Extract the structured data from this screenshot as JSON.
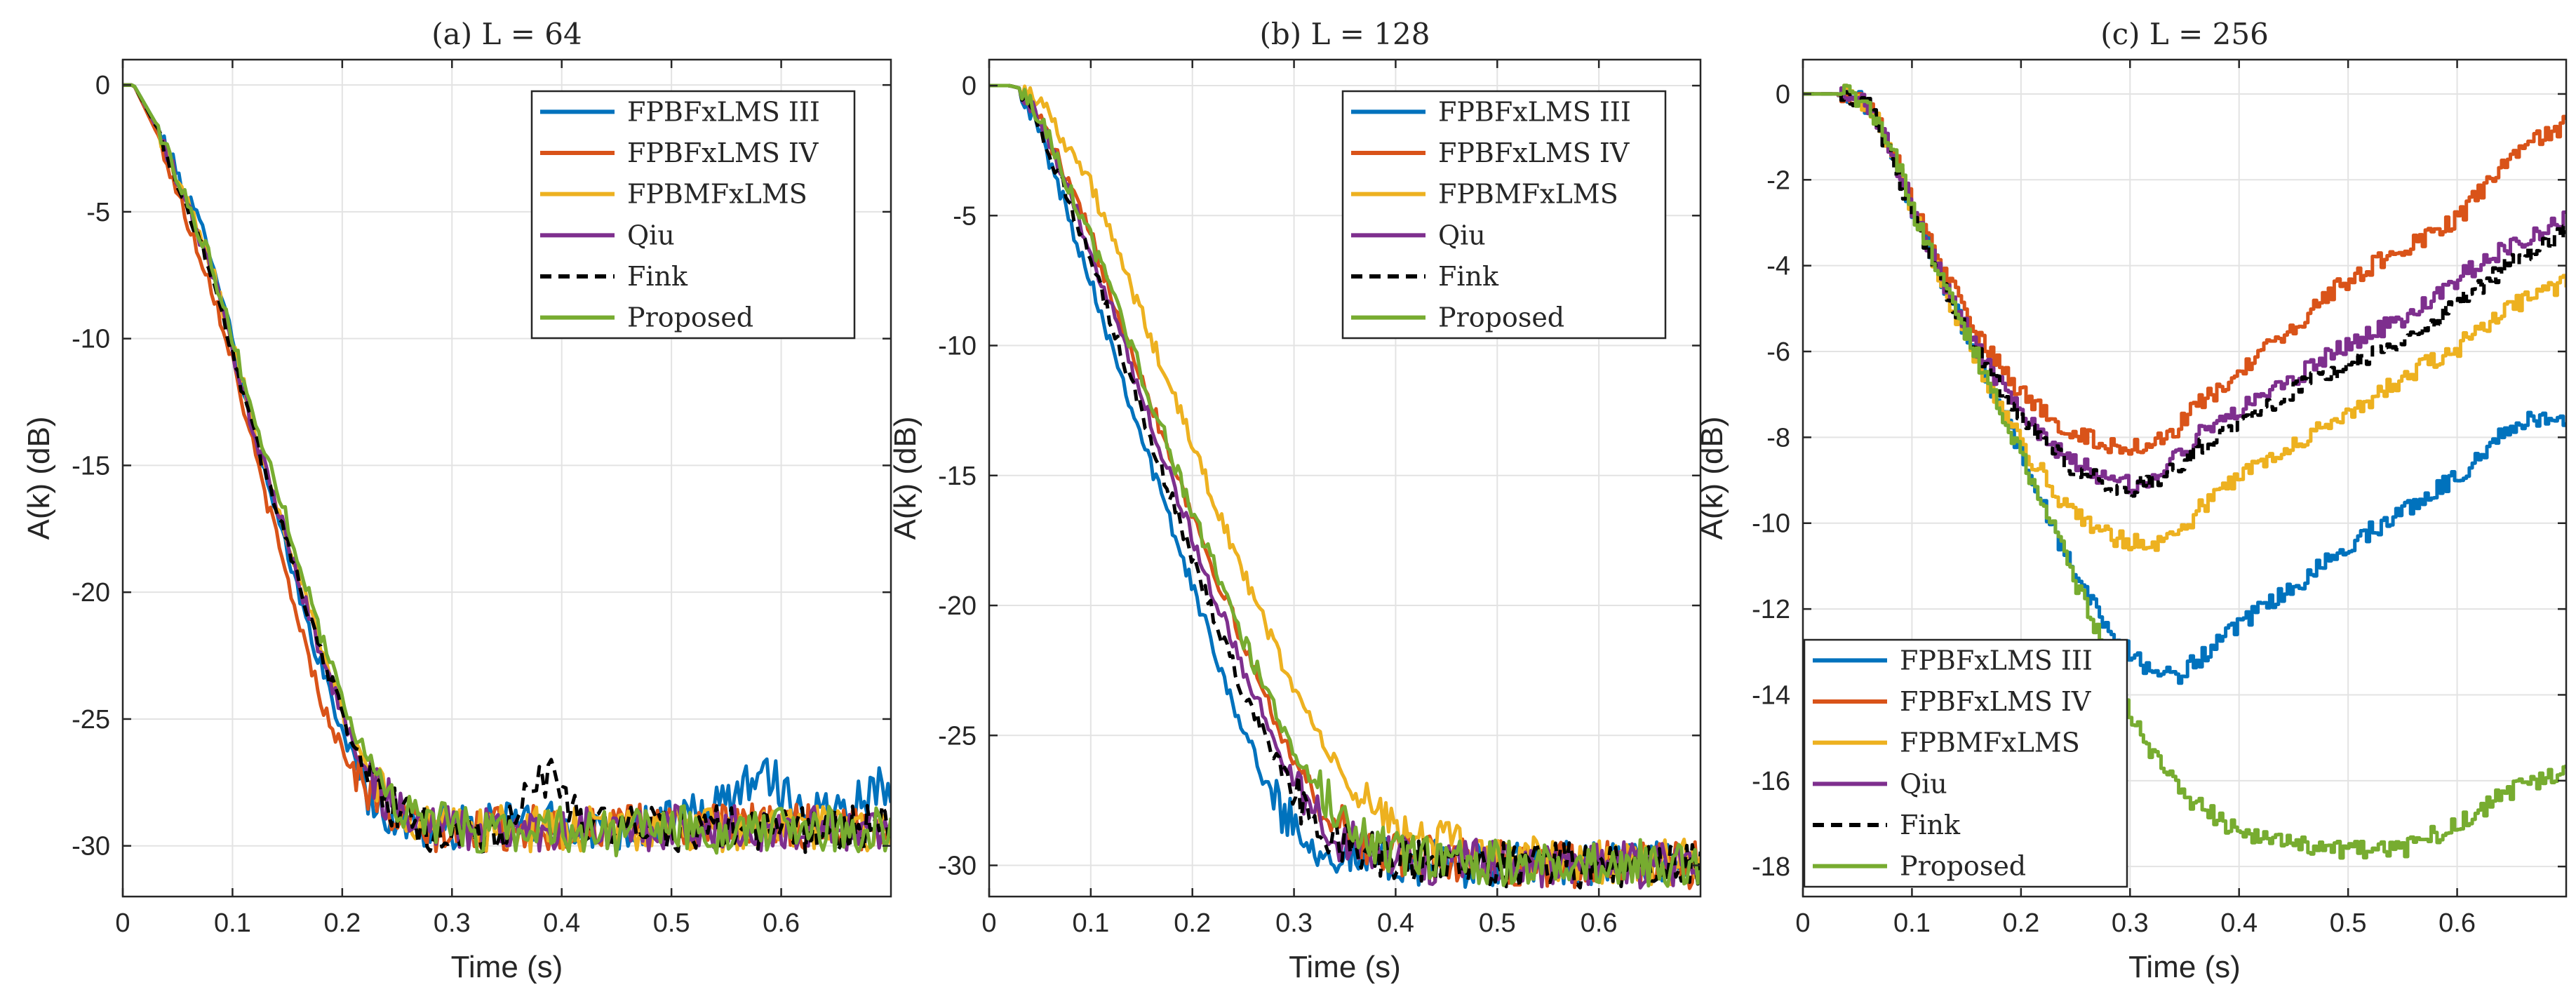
{
  "colors": {
    "FPBFxLMS III": "#0072BD",
    "FPBFxLMS IV": "#D95319",
    "FPBMFxLMS": "#EDB120",
    "Qiu": "#7E2F8E",
    "Fink": "#000000",
    "Proposed": "#77AC30"
  },
  "chart_data": [
    {
      "type": "line",
      "title": "(a) L = 64",
      "xlabel": "Time (s)",
      "ylabel": "A(k) (dB)",
      "xlim": [
        0,
        0.7
      ],
      "ylim": [
        -32,
        1
      ],
      "xticks": [
        0,
        0.1,
        0.2,
        0.3,
        0.4,
        0.5,
        0.6
      ],
      "xtick_labels": [
        "0",
        "0.1",
        "0.2",
        "0.3",
        "0.4",
        "0.5",
        "0.6"
      ],
      "yticks": [
        0,
        -5,
        -10,
        -15,
        -20,
        -25,
        -30
      ],
      "ytick_labels": [
        "0",
        "-5",
        "-10",
        "-15",
        "-20",
        "-25",
        "-30"
      ],
      "grid": true,
      "legend_position": "top-right",
      "series": [
        {
          "name": "FPBFxLMS III",
          "x": [
            0,
            0.01,
            0.03,
            0.06,
            0.08,
            0.1,
            0.12,
            0.14,
            0.17,
            0.2,
            0.23,
            0.26,
            0.28,
            0.32,
            0.36,
            0.4,
            0.45,
            0.5,
            0.55,
            0.58,
            0.62,
            0.65,
            0.7
          ],
          "y": [
            0,
            0,
            -1.5,
            -4.5,
            -6.5,
            -10,
            -14,
            -17,
            -21.5,
            -25.5,
            -28.5,
            -29.2,
            -29.3,
            -29.3,
            -29,
            -29.2,
            -29.3,
            -29.1,
            -28.4,
            -26.8,
            -28.6,
            -28.5,
            -27.5
          ]
        },
        {
          "name": "FPBFxLMS IV",
          "x": [
            0,
            0.01,
            0.03,
            0.06,
            0.08,
            0.1,
            0.12,
            0.15,
            0.18,
            0.2,
            0.22,
            0.25,
            0.28,
            0.32,
            0.36,
            0.4,
            0.45,
            0.5,
            0.55,
            0.6,
            0.65,
            0.7
          ],
          "y": [
            0,
            0,
            -1.8,
            -5.5,
            -7.8,
            -10.8,
            -14.5,
            -19.5,
            -24.2,
            -26.2,
            -27.6,
            -29,
            -29.4,
            -29.5,
            -29.2,
            -29.4,
            -29.3,
            -29.2,
            -29.3,
            -29.2,
            -29.3,
            -29.3
          ]
        },
        {
          "name": "FPBMFxLMS",
          "x": [
            0,
            0.01,
            0.03,
            0.06,
            0.08,
            0.1,
            0.12,
            0.15,
            0.18,
            0.21,
            0.24,
            0.27,
            0.3,
            0.35,
            0.4,
            0.45,
            0.5,
            0.55,
            0.6,
            0.65,
            0.7
          ],
          "y": [
            0,
            0,
            -1.6,
            -4.8,
            -7,
            -10.2,
            -13.5,
            -17.8,
            -22.2,
            -25.8,
            -28,
            -29,
            -29.3,
            -29.3,
            -29.4,
            -29.3,
            -29.3,
            -29.4,
            -29.3,
            -29.3,
            -29.3
          ]
        },
        {
          "name": "Qiu",
          "x": [
            0,
            0.01,
            0.03,
            0.06,
            0.08,
            0.1,
            0.12,
            0.15,
            0.18,
            0.21,
            0.24,
            0.27,
            0.3,
            0.35,
            0.4,
            0.45,
            0.5,
            0.55,
            0.6,
            0.65,
            0.7
          ],
          "y": [
            0,
            0,
            -1.6,
            -4.9,
            -7.2,
            -10.4,
            -13.8,
            -18,
            -22.4,
            -26,
            -28.2,
            -29,
            -29.3,
            -29.4,
            -29.3,
            -29.5,
            -29.3,
            -29.3,
            -29.4,
            -29.3,
            -29.3
          ]
        },
        {
          "name": "Fink",
          "x": [
            0,
            0.01,
            0.03,
            0.06,
            0.08,
            0.1,
            0.12,
            0.15,
            0.18,
            0.21,
            0.24,
            0.27,
            0.3,
            0.35,
            0.39,
            0.42,
            0.45,
            0.5,
            0.55,
            0.6,
            0.65,
            0.7
          ],
          "y": [
            0,
            0,
            -1.6,
            -5,
            -7.3,
            -10.5,
            -13.9,
            -18,
            -22.3,
            -26,
            -28.3,
            -29.2,
            -29.6,
            -29.4,
            -27,
            -29.2,
            -29.3,
            -29.4,
            -29.3,
            -29.4,
            -29.3,
            -29.3
          ]
        },
        {
          "name": "Proposed",
          "x": [
            0,
            0.01,
            0.03,
            0.06,
            0.08,
            0.1,
            0.12,
            0.15,
            0.18,
            0.21,
            0.24,
            0.27,
            0.3,
            0.35,
            0.4,
            0.45,
            0.5,
            0.55,
            0.6,
            0.65,
            0.7
          ],
          "y": [
            0,
            0,
            -1.5,
            -4.7,
            -6.9,
            -10,
            -13.2,
            -17.2,
            -21.6,
            -25.4,
            -27.8,
            -28.9,
            -29.3,
            -29.4,
            -29.3,
            -29.5,
            -29.3,
            -29.4,
            -29.4,
            -29.3,
            -29.4
          ]
        }
      ]
    },
    {
      "type": "line",
      "title": "(b) L = 128",
      "xlabel": "Time (s)",
      "ylabel": "A(k) (dB)",
      "xlim": [
        0,
        0.7
      ],
      "ylim": [
        -31.2,
        1
      ],
      "xticks": [
        0,
        0.1,
        0.2,
        0.3,
        0.4,
        0.5,
        0.6
      ],
      "xtick_labels": [
        "0",
        "0.1",
        "0.2",
        "0.3",
        "0.4",
        "0.5",
        "0.6"
      ],
      "yticks": [
        0,
        -5,
        -10,
        -15,
        -20,
        -25,
        -30
      ],
      "ytick_labels": [
        "0",
        "-5",
        "-10",
        "-15",
        "-20",
        "-25",
        "-30"
      ],
      "grid": true,
      "legend_position": "top-right",
      "series": [
        {
          "name": "FPBFxLMS III",
          "x": [
            0,
            0.02,
            0.03,
            0.05,
            0.1,
            0.15,
            0.2,
            0.25,
            0.28,
            0.32,
            0.36,
            0.4,
            0.45,
            0.5,
            0.55,
            0.6,
            0.65,
            0.7
          ],
          "y": [
            0,
            0,
            -0.1,
            -1.8,
            -7.5,
            -13.5,
            -19.3,
            -24.8,
            -27.5,
            -29.2,
            -29.7,
            -29.9,
            -29.9,
            -30,
            -30,
            -29.9,
            -30,
            -30
          ]
        },
        {
          "name": "FPBFxLMS IV",
          "x": [
            0,
            0.02,
            0.03,
            0.05,
            0.1,
            0.15,
            0.2,
            0.25,
            0.3,
            0.34,
            0.38,
            0.42,
            0.46,
            0.5,
            0.55,
            0.6,
            0.65,
            0.7
          ],
          "y": [
            0,
            0,
            -0.1,
            -1.2,
            -5.8,
            -11.2,
            -16.5,
            -21.5,
            -26,
            -28.4,
            -29.4,
            -29.7,
            -29.8,
            -29.9,
            -30,
            -29.9,
            -30,
            -30
          ]
        },
        {
          "name": "FPBMFxLMS",
          "x": [
            0,
            0.02,
            0.03,
            0.05,
            0.1,
            0.15,
            0.2,
            0.25,
            0.3,
            0.35,
            0.4,
            0.45,
            0.5,
            0.55,
            0.6,
            0.65,
            0.7
          ],
          "y": [
            0,
            0,
            -0.1,
            -0.5,
            -3.8,
            -8.8,
            -13.8,
            -18.8,
            -23.2,
            -26.8,
            -28.6,
            -29.2,
            -29.6,
            -29.8,
            -29.8,
            -29.9,
            -29.9
          ]
        },
        {
          "name": "Qiu",
          "x": [
            0,
            0.02,
            0.03,
            0.05,
            0.1,
            0.15,
            0.2,
            0.25,
            0.3,
            0.34,
            0.38,
            0.42,
            0.46,
            0.5,
            0.55,
            0.6,
            0.65,
            0.7
          ],
          "y": [
            0,
            0,
            -0.1,
            -1.4,
            -6.3,
            -11.9,
            -17.4,
            -22.5,
            -26.8,
            -28.9,
            -29.5,
            -29.8,
            -29.9,
            -29.9,
            -30,
            -30,
            -30,
            -30
          ]
        },
        {
          "name": "Fink",
          "x": [
            0,
            0.02,
            0.03,
            0.05,
            0.1,
            0.15,
            0.2,
            0.25,
            0.3,
            0.34,
            0.38,
            0.42,
            0.46,
            0.5,
            0.55,
            0.6,
            0.65,
            0.7
          ],
          "y": [
            0,
            0,
            -0.1,
            -1.5,
            -6.8,
            -12.6,
            -18.2,
            -23.3,
            -27.2,
            -29,
            -29.5,
            -29.8,
            -29.9,
            -29.9,
            -30,
            -30,
            -30,
            -30
          ]
        },
        {
          "name": "Proposed",
          "x": [
            0,
            0.02,
            0.03,
            0.05,
            0.1,
            0.15,
            0.2,
            0.25,
            0.3,
            0.35,
            0.39,
            0.43,
            0.47,
            0.5,
            0.55,
            0.6,
            0.65,
            0.7
          ],
          "y": [
            0,
            0,
            -0.1,
            -1.2,
            -5.9,
            -11.1,
            -16.4,
            -21.3,
            -25.6,
            -28.5,
            -29.4,
            -29.7,
            -29.8,
            -29.9,
            -29.9,
            -29.9,
            -29.9,
            -29.9
          ]
        }
      ]
    },
    {
      "type": "line",
      "title": "(c) L = 256",
      "xlabel": "Time (s)",
      "ylabel": "A(k) (dB)",
      "xlim": [
        0,
        0.7
      ],
      "ylim": [
        -18.7,
        0.8
      ],
      "xticks": [
        0,
        0.1,
        0.2,
        0.3,
        0.4,
        0.5,
        0.6
      ],
      "xtick_labels": [
        "0",
        "0.1",
        "0.2",
        "0.3",
        "0.4",
        "0.5",
        "0.6"
      ],
      "yticks": [
        0,
        -2,
        -4,
        -6,
        -8,
        -10,
        -12,
        -14,
        -16,
        -18
      ],
      "ytick_labels": [
        "0",
        "-2",
        "-4",
        "-6",
        "-8",
        "-10",
        "-12",
        "-14",
        "-16",
        "-18"
      ],
      "grid": true,
      "legend_position": "bottom-left",
      "series": [
        {
          "name": "FPBFxLMS III",
          "x": [
            0,
            0.04,
            0.06,
            0.08,
            0.1,
            0.13,
            0.16,
            0.2,
            0.24,
            0.28,
            0.31,
            0.34,
            0.38,
            0.42,
            0.46,
            0.5,
            0.55,
            0.6,
            0.65,
            0.7
          ],
          "y": [
            0,
            0,
            -0.3,
            -1.3,
            -2.7,
            -4.5,
            -6.2,
            -8.4,
            -10.8,
            -12.5,
            -13.3,
            -13.6,
            -12.8,
            -12,
            -11.3,
            -10.5,
            -9.7,
            -8.9,
            -7.7,
            -7.5
          ]
        },
        {
          "name": "FPBFxLMS IV",
          "x": [
            0,
            0.04,
            0.06,
            0.08,
            0.1,
            0.13,
            0.16,
            0.2,
            0.24,
            0.28,
            0.3,
            0.33,
            0.36,
            0.4,
            0.45,
            0.5,
            0.55,
            0.6,
            0.65,
            0.7
          ],
          "y": [
            0,
            0,
            -0.3,
            -1.2,
            -2.6,
            -4.2,
            -5.7,
            -7,
            -7.8,
            -8.2,
            -8.2,
            -8.1,
            -7.3,
            -6.5,
            -5.4,
            -4.3,
            -3.6,
            -2.9,
            -1.4,
            -0.7
          ]
        },
        {
          "name": "FPBMFxLMS",
          "x": [
            0,
            0.04,
            0.06,
            0.08,
            0.1,
            0.13,
            0.16,
            0.2,
            0.24,
            0.28,
            0.31,
            0.34,
            0.37,
            0.4,
            0.45,
            0.5,
            0.55,
            0.6,
            0.65,
            0.7
          ],
          "y": [
            0,
            0,
            -0.3,
            -1.3,
            -2.8,
            -4.6,
            -6.3,
            -8.2,
            -9.6,
            -10.3,
            -10.5,
            -10.3,
            -9.5,
            -8.9,
            -8.1,
            -7.5,
            -6.6,
            -5.9,
            -4.9,
            -4.4
          ]
        },
        {
          "name": "Qiu",
          "x": [
            0,
            0.04,
            0.06,
            0.08,
            0.1,
            0.13,
            0.16,
            0.2,
            0.24,
            0.28,
            0.3,
            0.33,
            0.36,
            0.4,
            0.45,
            0.5,
            0.55,
            0.6,
            0.65,
            0.7
          ],
          "y": [
            0,
            0,
            -0.3,
            -1.3,
            -2.7,
            -4.5,
            -6,
            -7.5,
            -8.5,
            -9,
            -9.1,
            -8.8,
            -8,
            -7.3,
            -6.6,
            -5.8,
            -5.2,
            -4.3,
            -3.5,
            -2.9
          ]
        },
        {
          "name": "Fink",
          "x": [
            0,
            0.04,
            0.06,
            0.08,
            0.1,
            0.13,
            0.16,
            0.2,
            0.24,
            0.28,
            0.3,
            0.33,
            0.36,
            0.4,
            0.45,
            0.5,
            0.55,
            0.6,
            0.65,
            0.7
          ],
          "y": [
            0,
            0,
            -0.3,
            -1.4,
            -2.9,
            -4.6,
            -6.1,
            -7.6,
            -8.6,
            -9.1,
            -9.2,
            -8.9,
            -8.3,
            -7.7,
            -6.9,
            -6.3,
            -5.8,
            -4.9,
            -3.9,
            -3.2
          ]
        },
        {
          "name": "Proposed",
          "x": [
            0,
            0.04,
            0.06,
            0.08,
            0.1,
            0.13,
            0.16,
            0.2,
            0.24,
            0.28,
            0.31,
            0.35,
            0.4,
            0.45,
            0.5,
            0.55,
            0.6,
            0.65,
            0.7
          ],
          "y": [
            0,
            0,
            -0.3,
            -1.2,
            -2.7,
            -4.5,
            -6.2,
            -8.5,
            -10.8,
            -13.2,
            -15,
            -16.4,
            -17.2,
            -17.5,
            -17.6,
            -17.6,
            -17,
            -16.2,
            -15.8
          ]
        }
      ]
    }
  ]
}
